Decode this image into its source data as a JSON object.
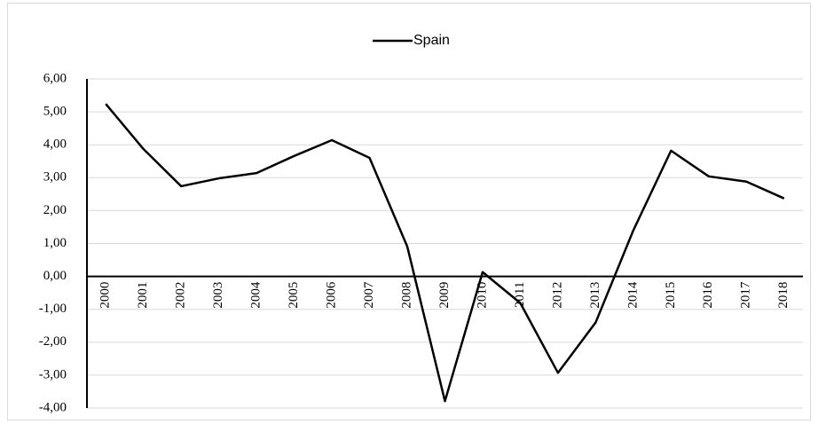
{
  "chart_data": {
    "type": "line",
    "categories": [
      "2000",
      "2001",
      "2002",
      "2003",
      "2004",
      "2005",
      "2006",
      "2007",
      "2008",
      "2009",
      "2010",
      "2011",
      "2012",
      "2013",
      "2014",
      "2015",
      "2016",
      "2017",
      "2018"
    ],
    "series": [
      {
        "name": "Spain",
        "color": "#000000",
        "values": [
          5.24,
          3.87,
          2.74,
          2.98,
          3.14,
          3.66,
          4.14,
          3.6,
          0.91,
          -3.79,
          0.13,
          -0.81,
          -2.93,
          -1.4,
          1.4,
          3.82,
          3.04,
          2.88,
          2.37
        ]
      }
    ],
    "ylim": [
      -4,
      6
    ],
    "yticks": [
      {
        "value": -4,
        "label": "-4,00"
      },
      {
        "value": -3,
        "label": "-3,00"
      },
      {
        "value": -2,
        "label": "-2,00"
      },
      {
        "value": -1,
        "label": "-1,00"
      },
      {
        "value": 0,
        "label": "0,00"
      },
      {
        "value": 1,
        "label": "1,00"
      },
      {
        "value": 2,
        "label": "2,00"
      },
      {
        "value": 3,
        "label": "3,00"
      },
      {
        "value": 4,
        "label": "4,00"
      },
      {
        "value": 5,
        "label": "5,00"
      },
      {
        "value": 6,
        "label": "6,00"
      }
    ],
    "grid": true,
    "legend": "top"
  }
}
